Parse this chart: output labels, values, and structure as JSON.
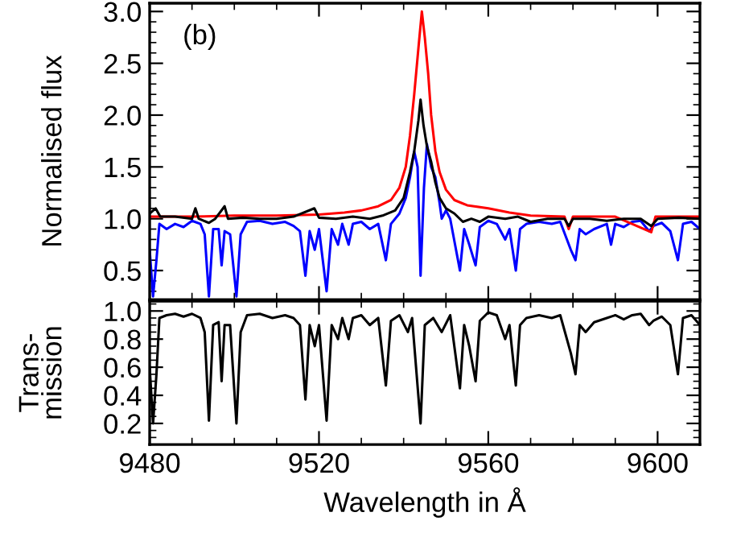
{
  "chart_data": [
    {
      "type": "line",
      "ylabel": "Normalised flux",
      "annotations": [
        "(b)"
      ],
      "tick_labels": "y",
      "xlim": [
        9480,
        9610
      ],
      "xticks": [
        9480,
        9520,
        9560,
        9600
      ],
      "ylim": [
        0.22,
        3.08
      ],
      "yticks": [
        {
          "value": 0.5,
          "label": "0.5"
        },
        {
          "value": 1,
          "label": "1.0"
        },
        {
          "value": 1.5,
          "label": "1.5"
        },
        {
          "value": 2,
          "label": "2.0"
        },
        {
          "value": 2.5,
          "label": "2.5"
        },
        {
          "value": 3,
          "label": "3.0"
        }
      ],
      "series": [
        {
          "color": "#0000ff",
          "x": [
            9480,
            9480.8,
            9481.6,
            9482.3,
            9484,
            9486,
            9488,
            9490,
            9492,
            9493,
            9494,
            9495,
            9496.3,
            9497,
            9497.7,
            9499,
            9500.5,
            9501.5,
            9503,
            9506,
            9509,
            9512,
            9514,
            9515.5,
            9516.8,
            9517.8,
            9519,
            9520,
            9521.8,
            9523,
            9524.5,
            9525.5,
            9527,
            9528,
            9530,
            9532,
            9534,
            9535.8,
            9537,
            9539,
            9540.5,
            9541.5,
            9542.5,
            9543.3,
            9544,
            9544.8,
            9545.5,
            9546.5,
            9547.5,
            9548.5,
            9549,
            9550,
            9551,
            9553.3,
            9554.3,
            9555.5,
            9557,
            9558,
            9560,
            9562,
            9564,
            9565,
            9566.5,
            9567.5,
            9569,
            9572,
            9575,
            9577,
            9579.5,
            9580.6,
            9581.6,
            9583,
            9585,
            9588,
            9589,
            9590,
            9592,
            9594,
            9596,
            9598,
            9599,
            9601,
            9603,
            9604.8,
            9606,
            9608,
            9610
          ],
          "values": [
            0.7,
            0.25,
            0.6,
            0.95,
            0.9,
            0.95,
            0.92,
            0.98,
            0.95,
            0.85,
            0.25,
            0.9,
            0.9,
            0.55,
            0.88,
            0.85,
            0.25,
            0.85,
            0.97,
            0.98,
            0.95,
            0.97,
            0.93,
            0.88,
            0.45,
            0.88,
            0.7,
            0.9,
            0.3,
            0.9,
            0.75,
            0.95,
            0.75,
            0.95,
            0.97,
            0.9,
            0.95,
            0.6,
            0.95,
            1.05,
            1.2,
            1.4,
            1.65,
            1.5,
            0.45,
            1.3,
            1.72,
            1.5,
            1.4,
            1.15,
            1.0,
            1.08,
            1.0,
            0.5,
            0.9,
            0.75,
            0.55,
            0.92,
            0.98,
            0.95,
            0.8,
            0.9,
            0.5,
            0.9,
            0.95,
            0.97,
            0.95,
            0.97,
            0.7,
            0.6,
            0.9,
            0.85,
            0.9,
            0.95,
            0.75,
            0.95,
            0.92,
            0.97,
            0.98,
            0.88,
            0.93,
            0.96,
            0.88,
            0.6,
            0.95,
            0.97,
            0.9
          ]
        },
        {
          "color": "#ff0000",
          "x": [
            9480,
            9490,
            9500,
            9510,
            9520,
            9526,
            9530,
            9534,
            9537,
            9539,
            9540.5,
            9541.5,
            9542.5,
            9543.5,
            9544.3,
            9545,
            9545.8,
            9546.5,
            9547.5,
            9548.5,
            9550,
            9552,
            9555,
            9560,
            9565,
            9570,
            9578,
            9579,
            9580,
            9590,
            9598.5,
            9599.5,
            9610
          ],
          "values": [
            1.02,
            1.02,
            1.03,
            1.03,
            1.04,
            1.06,
            1.08,
            1.12,
            1.18,
            1.3,
            1.5,
            1.8,
            2.2,
            2.65,
            3.0,
            2.75,
            2.4,
            2.0,
            1.65,
            1.45,
            1.28,
            1.18,
            1.13,
            1.1,
            1.06,
            1.03,
            1.02,
            0.9,
            1.02,
            1.02,
            0.87,
            1.02,
            1.02
          ]
        },
        {
          "color": "#000000",
          "x": [
            9480,
            9481.4,
            9482.5,
            9486,
            9490,
            9490.8,
            9491.6,
            9494,
            9495.5,
            9497.7,
            9498.5,
            9502,
            9506,
            9510,
            9514,
            9518.9,
            9520,
            9524,
            9528,
            9532,
            9535,
            9538,
            9540,
            9541.5,
            9542.5,
            9543.5,
            9544,
            9544.7,
            9545.5,
            9546.5,
            9547.5,
            9548.5,
            9550,
            9552,
            9554,
            9556,
            9558,
            9560,
            9564,
            9567,
            9570,
            9574,
            9578,
            9579,
            9580,
            9584,
            9588,
            9592,
            9596,
            9598.5,
            9600,
            9605,
            9610
          ],
          "values": [
            1.05,
            1.1,
            1.02,
            1.02,
            1.0,
            1.1,
            1.0,
            0.96,
            1.0,
            1.12,
            1.0,
            1.01,
            1.0,
            1.0,
            1.02,
            1.1,
            1.01,
            1.0,
            1.02,
            1.0,
            1.03,
            1.08,
            1.2,
            1.45,
            1.65,
            1.95,
            2.15,
            1.9,
            1.7,
            1.55,
            1.35,
            1.2,
            1.1,
            1.05,
            0.97,
            1.0,
            0.97,
            1.02,
            1.0,
            1.02,
            0.97,
            1.0,
            1.0,
            0.93,
            1.0,
            1.0,
            0.98,
            1.0,
            1.0,
            0.93,
            1.0,
            1.01,
            1.0
          ]
        }
      ]
    },
    {
      "type": "line",
      "xlabel": "Wavelength in Å",
      "ylabel": "Trans-\nmission",
      "xlim": [
        9480,
        9610
      ],
      "xticks": [
        9480,
        9520,
        9560,
        9600
      ],
      "ylim": [
        0.05,
        1.07
      ],
      "yticks": [
        {
          "value": 0.2,
          "label": "0.2"
        },
        {
          "value": 0.4,
          "label": "0.4"
        },
        {
          "value": 0.6,
          "label": "0.6"
        },
        {
          "value": 0.8,
          "label": "0.8"
        },
        {
          "value": 1,
          "label": "1.0"
        }
      ],
      "series": [
        {
          "color": "#000000",
          "x": [
            9480,
            9480.8,
            9481.6,
            9482.3,
            9484,
            9486,
            9488,
            9490,
            9492,
            9493,
            9494,
            9495,
            9496.3,
            9497,
            9497.7,
            9499,
            9500.5,
            9501.5,
            9503,
            9506,
            9509,
            9512,
            9514,
            9515.5,
            9516.8,
            9517.8,
            9519,
            9520,
            9521.8,
            9523,
            9524.5,
            9525.5,
            9527,
            9528,
            9530,
            9532,
            9534,
            9535.8,
            9537,
            9539,
            9541,
            9542,
            9544,
            9545,
            9547,
            9549,
            9551,
            9553.3,
            9554.3,
            9555.5,
            9557,
            9558,
            9560,
            9562,
            9564,
            9565,
            9566.5,
            9567.5,
            9569,
            9572,
            9575,
            9577,
            9579.5,
            9580.6,
            9581.6,
            9583,
            9585,
            9588,
            9590,
            9592,
            9594,
            9596,
            9598,
            9599,
            9601,
            9603,
            9604.8,
            9606,
            9608,
            9610
          ],
          "values": [
            0.6,
            0.2,
            0.55,
            0.95,
            0.97,
            0.98,
            0.96,
            0.98,
            0.95,
            0.85,
            0.22,
            0.9,
            0.92,
            0.5,
            0.9,
            0.9,
            0.2,
            0.85,
            0.97,
            0.98,
            0.95,
            0.97,
            0.95,
            0.9,
            0.37,
            0.9,
            0.75,
            0.9,
            0.22,
            0.9,
            0.8,
            0.95,
            0.8,
            0.95,
            0.97,
            0.9,
            0.95,
            0.47,
            0.93,
            0.97,
            0.85,
            0.95,
            0.2,
            0.9,
            0.95,
            0.85,
            0.97,
            0.45,
            0.9,
            0.75,
            0.5,
            0.93,
            0.99,
            0.97,
            0.8,
            0.9,
            0.47,
            0.9,
            0.95,
            0.97,
            0.95,
            0.97,
            0.7,
            0.55,
            0.9,
            0.85,
            0.92,
            0.95,
            0.97,
            0.94,
            0.97,
            0.98,
            0.9,
            0.93,
            0.96,
            0.9,
            0.55,
            0.95,
            0.97,
            0.9
          ]
        }
      ]
    }
  ]
}
